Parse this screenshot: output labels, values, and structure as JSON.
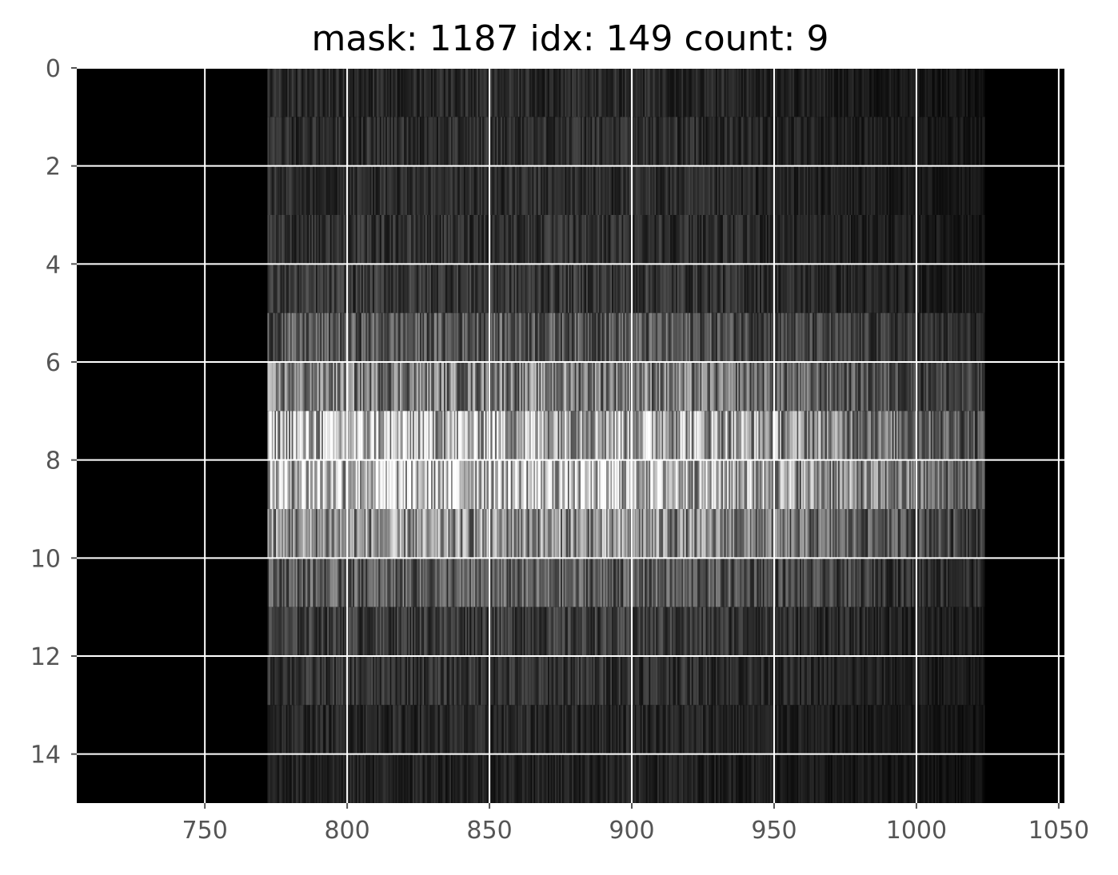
{
  "chart_data": {
    "type": "heatmap",
    "title": "mask: 1187 idx: 149 count: 9",
    "xlabel": "",
    "ylabel": "",
    "xlim": [
      705,
      1052
    ],
    "ylim": [
      15,
      0
    ],
    "x_ticks": [
      750,
      800,
      850,
      900,
      950,
      1000,
      1050
    ],
    "x_tick_labels": [
      "750",
      "800",
      "850",
      "900",
      "950",
      "1000",
      "1050"
    ],
    "y_ticks": [
      0,
      2,
      4,
      6,
      8,
      10,
      12,
      14
    ],
    "y_tick_labels": [
      "0",
      "2",
      "4",
      "6",
      "8",
      "10",
      "12",
      "14"
    ],
    "grid": true,
    "colormap": "gray",
    "colors": {
      "background": "#000000",
      "grid": "#ffffff",
      "tick_label": "#555555",
      "title": "#000000"
    },
    "signal_x_range": [
      772,
      1024
    ],
    "rows": [
      {
        "row": 0,
        "mean_intensity": 0.18
      },
      {
        "row": 1,
        "mean_intensity": 0.2
      },
      {
        "row": 2,
        "mean_intensity": 0.19
      },
      {
        "row": 3,
        "mean_intensity": 0.21
      },
      {
        "row": 4,
        "mean_intensity": 0.24
      },
      {
        "row": 5,
        "mean_intensity": 0.38
      },
      {
        "row": 6,
        "mean_intensity": 0.55
      },
      {
        "row": 7,
        "mean_intensity": 0.82
      },
      {
        "row": 8,
        "mean_intensity": 0.88
      },
      {
        "row": 9,
        "mean_intensity": 0.62
      },
      {
        "row": 10,
        "mean_intensity": 0.4
      },
      {
        "row": 11,
        "mean_intensity": 0.26
      },
      {
        "row": 12,
        "mean_intensity": 0.22
      },
      {
        "row": 13,
        "mean_intensity": 0.17
      },
      {
        "row": 14,
        "mean_intensity": 0.15
      }
    ]
  }
}
